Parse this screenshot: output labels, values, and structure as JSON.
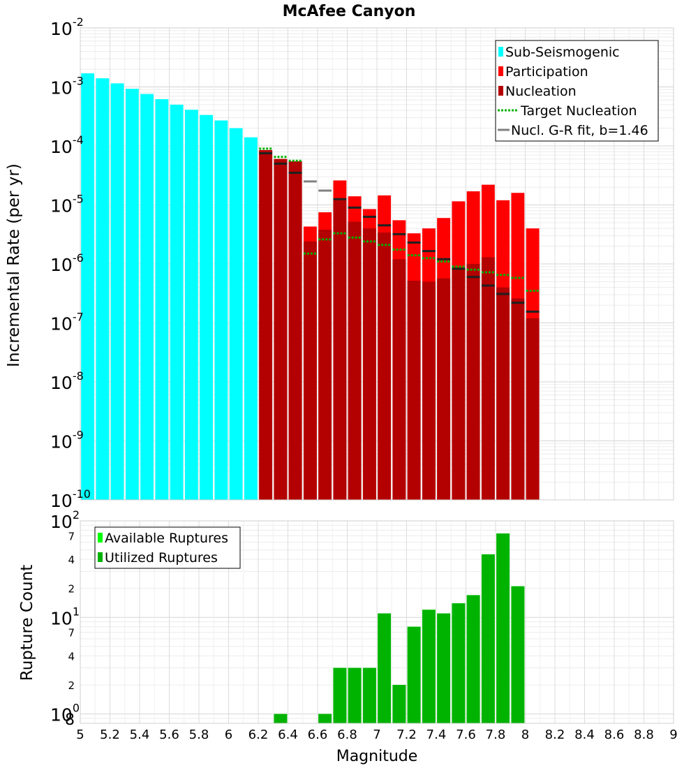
{
  "chart_data": [
    {
      "type": "bar",
      "title": "McAfee Canyon",
      "ylabel": "Incremental Rate (per yr)",
      "xlabel": "",
      "yscale": "log",
      "ylim": [
        1e-10,
        0.01
      ],
      "xlim": [
        5,
        9
      ],
      "y_tick_labels": [
        {
          "value": 1e-10,
          "base": "10",
          "exp": "-10"
        },
        {
          "value": 1e-09,
          "base": "10",
          "exp": "-9"
        },
        {
          "value": 1e-08,
          "base": "10",
          "exp": "-8"
        },
        {
          "value": 1e-07,
          "base": "10",
          "exp": "-7"
        },
        {
          "value": 1e-06,
          "base": "10",
          "exp": "-6"
        },
        {
          "value": 1e-05,
          "base": "10",
          "exp": "-5"
        },
        {
          "value": 0.0001,
          "base": "10",
          "exp": "-4"
        },
        {
          "value": 0.001,
          "base": "10",
          "exp": "-3"
        },
        {
          "value": 0.01,
          "base": "10",
          "exp": "-2"
        }
      ],
      "legend": {
        "position": "top-right",
        "entries": [
          {
            "label": "Sub-Seismogenic",
            "color": "#00ffff",
            "kind": "box"
          },
          {
            "label": "Participation",
            "color": "#ff0000",
            "kind": "box"
          },
          {
            "label": "Nucleation",
            "color": "#b30000",
            "kind": "box"
          },
          {
            "label": "Target Nucleation",
            "color": "#00b300",
            "kind": "dotted"
          },
          {
            "label": "Nucl. G-R fit, b=1.46",
            "color": "#808080",
            "kind": "line"
          }
        ]
      },
      "series": [
        {
          "name": "Sub-Seismogenic",
          "color": "#00ffff",
          "x": [
            5.05,
            5.15,
            5.25,
            5.35,
            5.45,
            5.55,
            5.65,
            5.75,
            5.85,
            5.95,
            6.05,
            6.15
          ],
          "values": [
            0.0017,
            0.0014,
            0.00115,
            0.00093,
            0.00076,
            0.00062,
            0.0005,
            0.00041,
            0.000335,
            0.00027,
            0.0002,
            0.00014
          ]
        },
        {
          "name": "Participation",
          "color": "#ff0000",
          "x": [
            6.25,
            6.35,
            6.45,
            6.55,
            6.65,
            6.75,
            6.85,
            6.95,
            7.05,
            7.15,
            7.25,
            7.35,
            7.45,
            7.55,
            7.65,
            7.75,
            7.85,
            7.95,
            8.05
          ],
          "values": [
            8.5e-05,
            6e-05,
            5.5e-05,
            4.3e-06,
            7.5e-06,
            2.6e-05,
            1.4e-05,
            8.5e-06,
            1.45e-05,
            5.5e-06,
            3.3e-06,
            4e-06,
            6e-06,
            1.15e-05,
            1.7e-05,
            2.2e-05,
            1.2e-05,
            1.6e-05,
            4e-06
          ]
        },
        {
          "name": "Nucleation",
          "color": "#b30000",
          "x": [
            6.25,
            6.35,
            6.45,
            6.55,
            6.65,
            6.75,
            6.85,
            6.95,
            7.05,
            7.15,
            7.25,
            7.35,
            7.45,
            7.55,
            7.65,
            7.75,
            7.85,
            7.95,
            8.05
          ],
          "values": [
            8.5e-05,
            6e-05,
            5.5e-05,
            2.4e-06,
            3.8e-06,
            1.2e-05,
            5.2e-06,
            4e-06,
            3.4e-06,
            1.2e-06,
            5.2e-07,
            5e-07,
            5.7e-07,
            8.5e-07,
            1e-06,
            1.3e-06,
            4e-07,
            2.6e-07,
            1.2e-07
          ]
        },
        {
          "name": "Target Nucleation",
          "color": "#00b300",
          "x": [
            6.25,
            6.35,
            6.45,
            6.55,
            6.65,
            6.75,
            6.85,
            6.95,
            7.05,
            7.15,
            7.25,
            7.35,
            7.45,
            7.55,
            7.65,
            7.75,
            7.85,
            7.95,
            8.05
          ],
          "values": [
            9e-05,
            6.5e-05,
            5.6e-05,
            1.5e-06,
            2.6e-06,
            3.3e-06,
            2.8e-06,
            2.4e-06,
            2.1e-06,
            1.75e-06,
            1.4e-06,
            1.25e-06,
            1.1e-06,
            9e-07,
            8e-07,
            7.2e-07,
            6.5e-07,
            5.8e-07,
            3.5e-07
          ]
        },
        {
          "name": "Nucl. G-R fit, b=1.46",
          "color": "#808080",
          "x": [
            6.25,
            6.35,
            6.45,
            6.55,
            6.65,
            6.75,
            6.85,
            6.95,
            7.05,
            7.15,
            7.25,
            7.35,
            7.45,
            7.55,
            7.65,
            7.75,
            7.85,
            7.95,
            8.05
          ],
          "values": [
            7.5e-05,
            5e-05,
            3.5e-05,
            2.5e-05,
            1.75e-05,
            1.25e-05,
            9e-06,
            6.3e-06,
            4.5e-06,
            3.2e-06,
            2.3e-06,
            1.65e-06,
            1.2e-06,
            8.3e-07,
            6e-07,
            4.3e-07,
            3.1e-07,
            2.2e-07,
            1.55e-07
          ]
        }
      ]
    },
    {
      "type": "bar",
      "title": "",
      "xlabel": "Magnitude",
      "ylabel": "Rupture Count",
      "yscale": "log",
      "ylim": [
        0.8,
        100
      ],
      "xlim": [
        5,
        9
      ],
      "x_tick_labels": [
        "5",
        "5.2",
        "5.4",
        "5.6",
        "5.8",
        "6",
        "6.2",
        "6.4",
        "6.6",
        "6.8",
        "7",
        "7.2",
        "7.4",
        "7.6",
        "7.8",
        "8",
        "8.2",
        "8.4",
        "8.6",
        "8.8",
        "9"
      ],
      "y_major_tick_labels": [
        {
          "value": 1,
          "base": "10",
          "exp": "0"
        },
        {
          "value": 10,
          "base": "10",
          "exp": "1"
        },
        {
          "value": 100,
          "base": "10",
          "exp": "2"
        }
      ],
      "y_minor_tick_labels": [
        {
          "value": 0.8,
          "label": "8"
        },
        {
          "value": 2,
          "label": "2"
        },
        {
          "value": 4,
          "label": "4"
        },
        {
          "value": 7,
          "label": "7"
        },
        {
          "value": 20,
          "label": "2"
        },
        {
          "value": 40,
          "label": "4"
        },
        {
          "value": 70,
          "label": "7"
        }
      ],
      "legend": {
        "position": "top-left",
        "entries": [
          {
            "label": "Available Ruptures",
            "color": "#00ff00",
            "kind": "box"
          },
          {
            "label": "Utilized Ruptures",
            "color": "#00b300",
            "kind": "box"
          }
        ]
      },
      "series": [
        {
          "name": "Available Ruptures",
          "color": "#00ff00",
          "x": [
            6.35,
            6.65,
            6.75,
            6.85,
            6.95,
            7.05,
            7.15,
            7.25,
            7.35,
            7.45,
            7.55,
            7.65,
            7.75,
            7.85,
            7.95
          ],
          "values": [
            1,
            1,
            3,
            3,
            3,
            11,
            2,
            8,
            12,
            11,
            14,
            17,
            45,
            74,
            21
          ]
        },
        {
          "name": "Utilized Ruptures",
          "color": "#00b300",
          "x": [
            6.35,
            6.65,
            6.75,
            6.85,
            6.95,
            7.05,
            7.15,
            7.25,
            7.35,
            7.45,
            7.55,
            7.65,
            7.75,
            7.85,
            7.95
          ],
          "values": [
            1,
            1,
            3,
            3,
            3,
            11,
            2,
            8,
            12,
            11,
            14,
            17,
            45,
            74,
            21
          ]
        }
      ]
    }
  ]
}
